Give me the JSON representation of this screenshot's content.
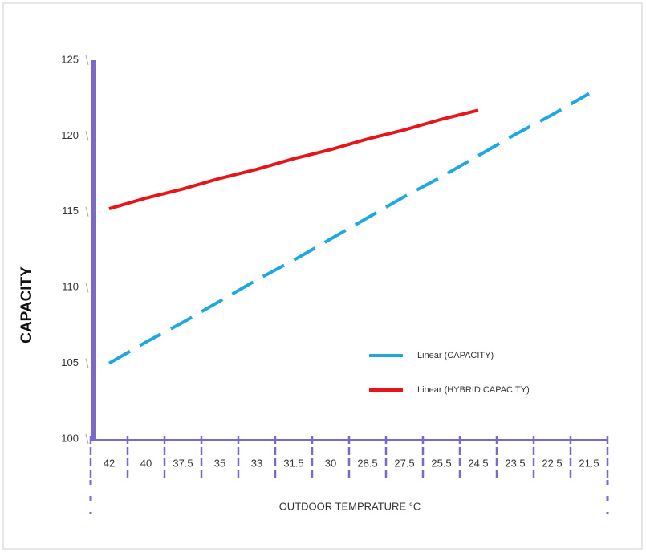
{
  "chart_data": {
    "type": "line",
    "x_label": "OUTDOOR TEMPRATURE °C",
    "y_label": "CAPACITY",
    "categories": [
      "42",
      "40",
      "37.5",
      "35",
      "33",
      "31.5",
      "30",
      "28.5",
      "27.5",
      "25.5",
      "24.5",
      "23.5",
      "22.5",
      "21.5"
    ],
    "series": [
      {
        "name": "Linear (CAPACITY)",
        "color": "#1fa8e0",
        "dashed": true,
        "values": [
          105,
          106.4,
          107.7,
          109.1,
          110.5,
          111.8,
          113.2,
          114.6,
          116.0,
          117.3,
          118.7,
          120.1,
          121.4,
          122.8
        ]
      },
      {
        "name": "Linear (HYBRID CAPACITY)",
        "color": "#e8141b",
        "dashed": false,
        "values": [
          115.2,
          115.9,
          116.5,
          117.2,
          117.8,
          118.5,
          119.1,
          119.8,
          120.4,
          121.1,
          121.7,
          null,
          null,
          null
        ]
      }
    ],
    "ylim": [
      100,
      125
    ],
    "yticks": [
      100,
      105,
      110,
      115,
      120,
      125
    ],
    "axis_color": "#7b68c8",
    "legend": "right"
  }
}
